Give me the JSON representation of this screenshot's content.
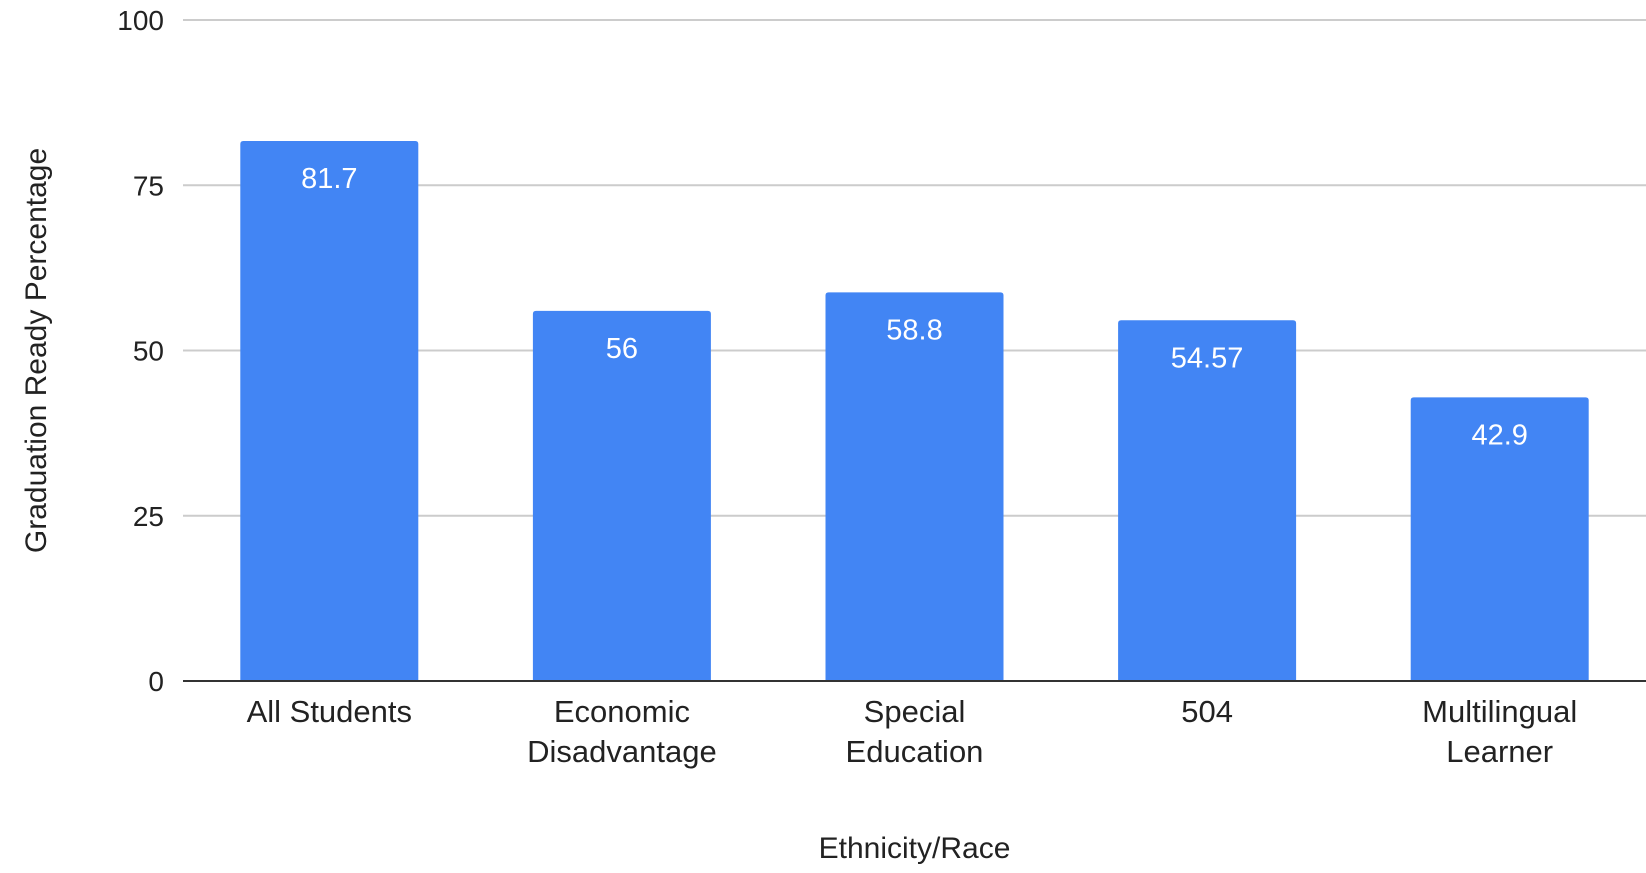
{
  "chart_data": {
    "type": "bar",
    "title": "",
    "xlabel": "Ethnicity/Race",
    "ylabel": "Graduation Ready Percentage",
    "ylim": [
      0,
      100
    ],
    "yticks": [
      0,
      25,
      50,
      75,
      100
    ],
    "grid": true,
    "legend": "none",
    "bar_color": "#4285f4",
    "categories": [
      [
        "All Students"
      ],
      [
        "Economic",
        "Disadvantage"
      ],
      [
        "Special",
        "Education"
      ],
      [
        "504"
      ],
      [
        "Multilingual",
        "Learner"
      ]
    ],
    "values": [
      81.7,
      56,
      58.8,
      54.57,
      42.9
    ],
    "data_labels": [
      "81.7",
      "56",
      "58.8",
      "54.57",
      "42.9"
    ]
  }
}
